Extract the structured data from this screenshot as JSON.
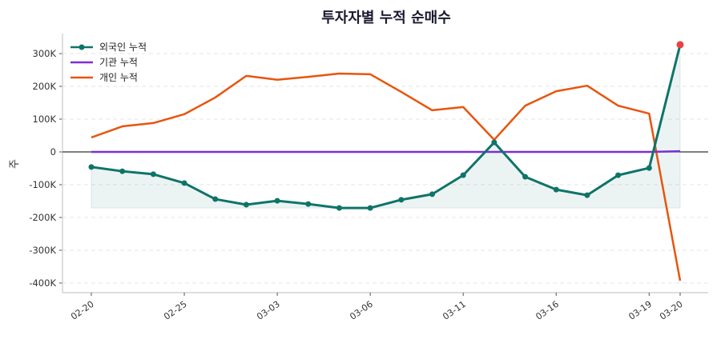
{
  "chart_data": {
    "type": "line",
    "title": "투자자별 누적 순매수",
    "ylabel": "주",
    "xlabel": "",
    "ylim": [
      -420000,
      360000
    ],
    "yticks": [
      300000,
      200000,
      100000,
      0,
      -100000,
      -200000,
      -300000,
      -400000
    ],
    "ytick_labels": [
      "300K",
      "200K",
      "100K",
      "0",
      "-100K",
      "-200K",
      "-300K",
      "-400K"
    ],
    "x_points": 20,
    "xticks": [
      {
        "index": 0,
        "label": "02-20"
      },
      {
        "index": 3,
        "label": "02-25"
      },
      {
        "index": 6,
        "label": "03-03"
      },
      {
        "index": 9,
        "label": "03-06"
      },
      {
        "index": 12,
        "label": "03-11"
      },
      {
        "index": 15,
        "label": "03-16"
      },
      {
        "index": 18,
        "label": "03-19"
      },
      {
        "index": 19,
        "label": "03-20"
      }
    ],
    "grid": "y-dashed",
    "legend": "top-left",
    "series": [
      {
        "name": "외국인 누적",
        "color": "#0f7468",
        "markers": true,
        "fill": true,
        "highlight_last_color": "#e8423f",
        "values": [
          -46000,
          -59000,
          -68000,
          -95000,
          -144000,
          -161000,
          -149000,
          -159000,
          -171000,
          -171000,
          -146000,
          -129000,
          -71000,
          29000,
          -76000,
          -115000,
          -132000,
          -71000,
          -49000,
          327000
        ]
      },
      {
        "name": "기관 누적",
        "color": "#7b2fd6",
        "markers": false,
        "values": [
          0,
          0,
          0,
          0,
          0,
          0,
          0,
          0,
          0,
          0,
          0,
          0,
          0,
          0,
          0,
          0,
          0,
          0,
          0,
          2000
        ]
      },
      {
        "name": "개인 누적",
        "color": "#e8550d",
        "markers": false,
        "values": [
          44000,
          78000,
          88000,
          115000,
          166000,
          232000,
          220000,
          229000,
          239000,
          237000,
          183000,
          127000,
          137000,
          37000,
          141000,
          185000,
          202000,
          141000,
          117000,
          -393000
        ]
      }
    ]
  }
}
